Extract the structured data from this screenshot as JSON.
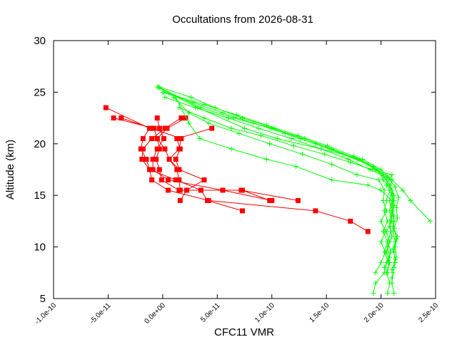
{
  "chart_data": {
    "type": "line",
    "title": "Occultations from 2026-08-31",
    "xlabel": "CFC11 VMR",
    "ylabel": "Altitude (km)",
    "xlim": [
      -1e-10,
      2.5e-10
    ],
    "ylim": [
      5,
      30
    ],
    "xticks": [
      {
        "value": -1e-10,
        "label": "-1.0e-10"
      },
      {
        "value": -5e-11,
        "label": "-5.0e-11"
      },
      {
        "value": 0,
        "label": "0.0e+00"
      },
      {
        "value": 5e-11,
        "label": "5.0e-11"
      },
      {
        "value": 1e-10,
        "label": "1.0e-10"
      },
      {
        "value": 1.5e-10,
        "label": "1.5e-10"
      },
      {
        "value": 2e-10,
        "label": "2.0e-10"
      },
      {
        "value": 2.5e-10,
        "label": "2.5e-10"
      }
    ],
    "yticks": [
      {
        "value": 5,
        "label": "5"
      },
      {
        "value": 10,
        "label": "10"
      },
      {
        "value": 15,
        "label": "15"
      },
      {
        "value": 20,
        "label": "20"
      },
      {
        "value": 25,
        "label": "25"
      },
      {
        "value": 30,
        "label": "30"
      }
    ],
    "grid": false,
    "series": [
      {
        "color": "#ff0000",
        "marker": "square",
        "points": [
          [
            -5.2e-11,
            23.5
          ],
          [
            -1.2e-11,
            21.5
          ],
          [
            -1.8e-11,
            20.5
          ],
          [
            -2e-11,
            19.5
          ],
          [
            -1.5e-11,
            18.5
          ],
          [
            -1.2e-11,
            17.5
          ],
          [
            -1e-11,
            16.5
          ],
          [
            5e-12,
            15.5
          ],
          [
            4.2e-11,
            14.5
          ],
          [
            1.4e-10,
            13.5
          ],
          [
            1.72e-10,
            12.5
          ],
          [
            1.88e-10,
            11.5
          ]
        ]
      },
      {
        "color": "#ff0000",
        "marker": "square",
        "points": [
          [
            -4.5e-11,
            22.5
          ],
          [
            -8e-12,
            21.5
          ],
          [
            -5e-12,
            20.5
          ],
          [
            -3e-12,
            19.5
          ],
          [
            -6e-12,
            18.5
          ],
          [
            -3e-12,
            17.5
          ],
          [
            -1e-12,
            16.5
          ],
          [
            1.5e-11,
            15.5
          ],
          [
            7.2e-11,
            15.5
          ],
          [
            1.24e-10,
            14.5
          ]
        ]
      },
      {
        "color": "#ff0000",
        "marker": "square",
        "points": [
          [
            -3.8e-11,
            22.5
          ],
          [
            -1e-11,
            21.5
          ],
          [
            1.7e-11,
            20.5
          ],
          [
            1.5e-11,
            19.5
          ],
          [
            6e-12,
            18.5
          ],
          [
            1.3e-11,
            17.5
          ],
          [
            1.5e-11,
            16.5
          ],
          [
            1.6e-11,
            15.5
          ],
          [
            7.3e-11,
            15.5
          ],
          [
            9.8e-11,
            14.5
          ]
        ]
      },
      {
        "color": "#ff0000",
        "marker": "square",
        "points": [
          [
            -5e-12,
            22.5
          ],
          [
            -3e-12,
            21.5
          ],
          [
            1e-12,
            20.5
          ],
          [
            -5e-12,
            19.5
          ],
          [
            -9e-12,
            18.5
          ],
          [
            -9e-12,
            17.5
          ],
          [
            5e-12,
            16.5
          ],
          [
            5.5e-11,
            15.5
          ],
          [
            1e-10,
            14.5
          ]
        ]
      },
      {
        "color": "#ff0000",
        "marker": "square",
        "points": [
          [
            1.7e-11,
            22.5
          ],
          [
            2e-12,
            21.5
          ],
          [
            -1e-11,
            20.5
          ],
          [
            -1.8e-11,
            19.5
          ],
          [
            -1.9e-11,
            18.5
          ],
          [
            -1.2e-11,
            17.5
          ],
          [
            1.2e-11,
            16.5
          ],
          [
            3.5e-11,
            15.5
          ],
          [
            4.1e-11,
            14.5
          ],
          [
            7.3e-11,
            13.5
          ]
        ]
      },
      {
        "color": "#ff0000",
        "marker": "square",
        "points": [
          [
            2.1e-11,
            22.5
          ],
          [
            4e-12,
            21.5
          ],
          [
            -5e-12,
            20.5
          ],
          [
            2e-12,
            19.5
          ],
          [
            6e-12,
            18.5
          ],
          [
            1.5e-11,
            17.5
          ],
          [
            3.8e-11,
            16.5
          ],
          [
            2.2e-11,
            15.5
          ],
          [
            1.6e-11,
            14.5
          ]
        ]
      },
      {
        "color": "#ff0000",
        "marker": "square",
        "points": [
          [
            4.5e-11,
            21.5
          ],
          [
            1.3e-11,
            20.5
          ],
          [
            1.6e-11,
            19.5
          ],
          [
            1.2e-11,
            18.5
          ],
          [
            1.5e-11,
            17.5
          ]
        ]
      },
      {
        "color": "#00ff00",
        "marker": "plus",
        "points": [
          [
            -5e-12,
            25.5
          ],
          [
            3.2e-11,
            23.5
          ],
          [
            7.5e-11,
            21.5
          ],
          [
            1.05e-10,
            20.5
          ],
          [
            1.45e-10,
            19.5
          ],
          [
            1.83e-10,
            18.5
          ],
          [
            2e-10,
            17.5
          ],
          [
            2.1e-10,
            16.5
          ],
          [
            2.08e-10,
            15.5
          ],
          [
            2.05e-10,
            14.5
          ],
          [
            2.03e-10,
            13.5
          ],
          [
            2.06e-10,
            12.5
          ],
          [
            2.02e-10,
            11.5
          ],
          [
            2.06e-10,
            10.5
          ],
          [
            2.03e-10,
            9.5
          ],
          [
            2.07e-10,
            8.5
          ],
          [
            2.05e-10,
            7.5
          ],
          [
            2.08e-10,
            6.5
          ],
          [
            2.06e-10,
            5.5
          ]
        ]
      },
      {
        "color": "#00ff00",
        "marker": "plus",
        "points": [
          [
            -4e-12,
            25.5
          ],
          [
            3.5e-11,
            23.5
          ],
          [
            6.5e-11,
            22.5
          ],
          [
            1e-10,
            21.5
          ],
          [
            1.3e-10,
            20.5
          ],
          [
            1.55e-10,
            19.5
          ],
          [
            1.78e-10,
            18.5
          ],
          [
            1.97e-10,
            17.5
          ],
          [
            2.02e-10,
            16.5
          ],
          [
            2.1e-10,
            15.5
          ],
          [
            2.08e-10,
            14.5
          ],
          [
            2.1e-10,
            13.5
          ],
          [
            2.08e-10,
            12.5
          ],
          [
            2.09e-10,
            11.5
          ],
          [
            2.06e-10,
            10.5
          ],
          [
            2.09e-10,
            9.5
          ],
          [
            2.05e-10,
            8.5
          ],
          [
            2.03e-10,
            7.5
          ],
          [
            1.95e-10,
            6.5
          ],
          [
            1.93e-10,
            5.5
          ]
        ]
      },
      {
        "color": "#00ff00",
        "marker": "plus",
        "points": [
          [
            -3e-12,
            25.5
          ],
          [
            2.6e-11,
            24.5
          ],
          [
            4.8e-11,
            23.5
          ],
          [
            7.3e-11,
            22.5
          ],
          [
            1.02e-10,
            21.5
          ],
          [
            1.26e-10,
            20.5
          ],
          [
            1.53e-10,
            19.5
          ],
          [
            1.8e-10,
            18.5
          ],
          [
            1.95e-10,
            17.5
          ],
          [
            2.05e-10,
            16.5
          ],
          [
            2.1e-10,
            15.5
          ],
          [
            2.12e-10,
            14.5
          ],
          [
            2.1e-10,
            13.5
          ],
          [
            2.12e-10,
            12.5
          ],
          [
            2.11e-10,
            11.5
          ],
          [
            2.13e-10,
            10.5
          ],
          [
            2.12e-10,
            9.5
          ],
          [
            2.13e-10,
            8.5
          ],
          [
            2.11e-10,
            7.5
          ],
          [
            2.1e-10,
            6.5
          ],
          [
            2.12e-10,
            5.5
          ]
        ]
      },
      {
        "color": "#00ff00",
        "marker": "plus",
        "points": [
          [
            0,
            25.0
          ],
          [
            2.8e-11,
            24.0
          ],
          [
            5.5e-11,
            23.0
          ],
          [
            8.3e-11,
            22.0
          ],
          [
            1.12e-10,
            21.0
          ],
          [
            1.4e-10,
            20.0
          ],
          [
            1.65e-10,
            19.0
          ],
          [
            1.88e-10,
            18.0
          ],
          [
            2.02e-10,
            17.0
          ],
          [
            2.08e-10,
            16.0
          ],
          [
            2.12e-10,
            15.0
          ],
          [
            2.1e-10,
            14.0
          ],
          [
            2.12e-10,
            13.0
          ],
          [
            2.11e-10,
            12.0
          ],
          [
            2.15e-10,
            11.0
          ],
          [
            2.13e-10,
            10.0
          ],
          [
            2.14e-10,
            9.0
          ],
          [
            2.12e-10,
            8.0
          ],
          [
            2.1e-10,
            7.0
          ]
        ]
      },
      {
        "color": "#00ff00",
        "marker": "plus",
        "points": [
          [
            2e-12,
            24.5
          ],
          [
            3e-11,
            23.5
          ],
          [
            6e-11,
            22.5
          ],
          [
            8.8e-11,
            21.5
          ],
          [
            1.18e-10,
            20.5
          ],
          [
            1.45e-10,
            19.5
          ],
          [
            1.7e-10,
            18.5
          ],
          [
            1.9e-10,
            17.5
          ],
          [
            2.1e-10,
            16.5
          ],
          [
            2.2e-10,
            15.5
          ],
          [
            2.27e-10,
            14.5
          ],
          [
            2.45e-10,
            12.5
          ]
        ]
      },
      {
        "color": "#00ff00",
        "marker": "plus",
        "points": [
          [
            1e-12,
            25.0
          ],
          [
            3.8e-11,
            23.8
          ],
          [
            6.8e-11,
            22.8
          ],
          [
            9.5e-11,
            21.8
          ],
          [
            1.24e-10,
            20.8
          ],
          [
            1.51e-10,
            19.8
          ],
          [
            1.75e-10,
            18.8
          ],
          [
            1.93e-10,
            17.8
          ],
          [
            2.06e-10,
            16.8
          ],
          [
            2.13e-10,
            15.8
          ],
          [
            2.16e-10,
            14.8
          ],
          [
            2.14e-10,
            13.8
          ],
          [
            2.15e-10,
            12.8
          ],
          [
            2.12e-10,
            11.8
          ],
          [
            2.14e-10,
            10.8
          ],
          [
            2.11e-10,
            9.8
          ],
          [
            2.13e-10,
            8.8
          ],
          [
            2.1e-10,
            7.8
          ]
        ]
      },
      {
        "color": "#00ff00",
        "marker": "plus",
        "points": [
          [
            1e-11,
            24.5
          ],
          [
            2.4e-11,
            23.0
          ],
          [
            4.2e-11,
            22.0
          ],
          [
            7e-11,
            21.0
          ],
          [
            9.8e-11,
            20.0
          ],
          [
            1.28e-10,
            19.0
          ],
          [
            1.55e-10,
            18.0
          ],
          [
            1.78e-10,
            17.0
          ],
          [
            1.98e-10,
            16.5
          ],
          [
            2.03e-10,
            15.5
          ],
          [
            2.02e-10,
            14.5
          ],
          [
            2.05e-10,
            13.5
          ],
          [
            2e-10,
            12.5
          ],
          [
            2.04e-10,
            11.5
          ],
          [
            2e-10,
            10.5
          ],
          [
            2.04e-10,
            9.5
          ],
          [
            2e-10,
            8.5
          ],
          [
            1.95e-10,
            7.5
          ]
        ]
      },
      {
        "color": "#00ff00",
        "marker": "plus",
        "points": [
          [
            1.2e-11,
            24.5
          ],
          [
            2.4e-11,
            22.0
          ],
          [
            3.4e-11,
            20.5
          ],
          [
            6.3e-11,
            19.5
          ],
          [
            9.5e-11,
            18.5
          ],
          [
            1.22e-10,
            17.8
          ],
          [
            1.55e-10,
            16.5
          ],
          [
            1.88e-10,
            16.0
          ],
          [
            2e-10,
            15.5
          ],
          [
            2.1e-10,
            14.5
          ],
          [
            2.08e-10,
            13.5
          ],
          [
            2.1e-10,
            12.5
          ],
          [
            2.05e-10,
            11.5
          ],
          [
            2.08e-10,
            10.5
          ],
          [
            2.05e-10,
            9.5
          ],
          [
            2.08e-10,
            8.5
          ],
          [
            2.06e-10,
            7.5
          ]
        ]
      },
      {
        "color": "#00ff00",
        "marker": "plus",
        "points": [
          [
            1.5e-11,
            23.5
          ],
          [
            3.8e-11,
            22.5
          ],
          [
            6.3e-11,
            21.5
          ],
          [
            9e-11,
            20.8
          ],
          [
            1.2e-10,
            19.8
          ],
          [
            1.48e-10,
            19.0
          ],
          [
            1.72e-10,
            18.2
          ],
          [
            1.92e-10,
            17.5
          ],
          [
            2.1e-10,
            17.0
          ],
          [
            2.05e-10,
            16.0
          ],
          [
            2.1e-10,
            15.0
          ],
          [
            2.12e-10,
            14.0
          ],
          [
            2.1e-10,
            13.0
          ],
          [
            2.08e-10,
            12.0
          ],
          [
            2.1e-10,
            11.0
          ],
          [
            2.06e-10,
            10.0
          ],
          [
            2.08e-10,
            9.0
          ],
          [
            2.03e-10,
            8.0
          ]
        ]
      }
    ]
  }
}
